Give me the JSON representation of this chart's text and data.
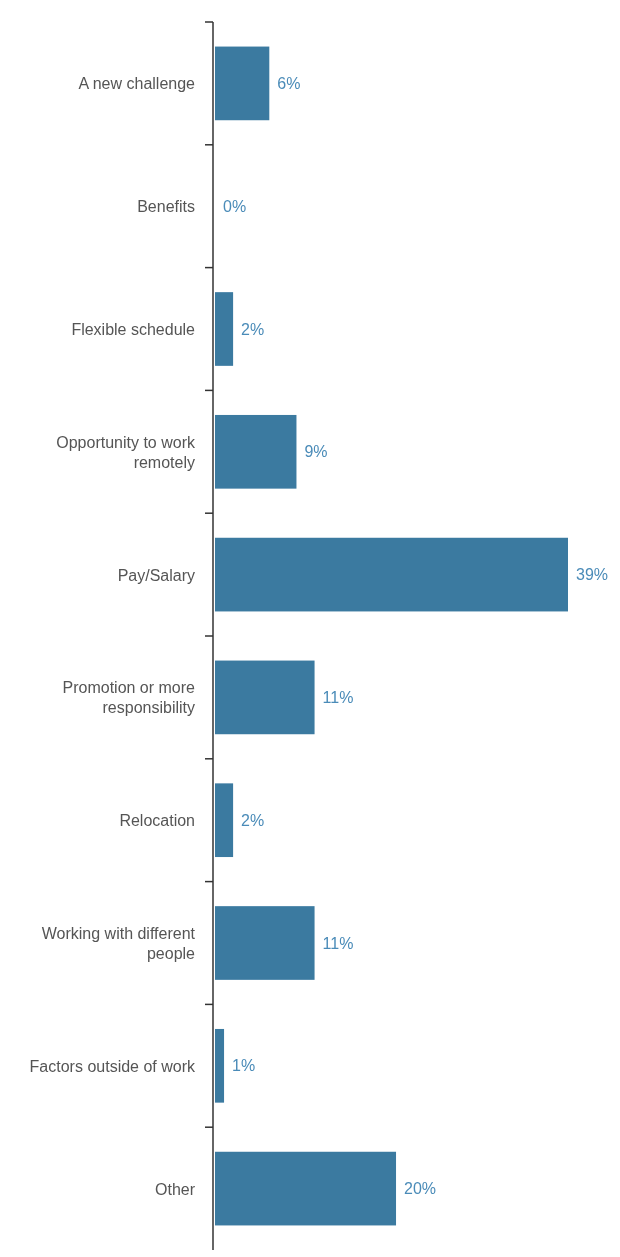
{
  "chart_data": {
    "type": "bar",
    "orientation": "horizontal",
    "categories": [
      "A new challenge",
      "Benefits",
      "Flexible schedule",
      "Opportunity to work remotely",
      "Pay/Salary",
      "Promotion or more responsibility",
      "Relocation",
      "Working with different people",
      "Factors outside of work",
      "Other"
    ],
    "values": [
      6,
      0,
      2,
      9,
      39,
      11,
      2,
      11,
      1,
      20
    ],
    "value_labels": [
      "6%",
      "0%",
      "2%",
      "9%",
      "39%",
      "11%",
      "2%",
      "11%",
      "1%",
      "20%"
    ],
    "color": "#3b7aa0"
  }
}
